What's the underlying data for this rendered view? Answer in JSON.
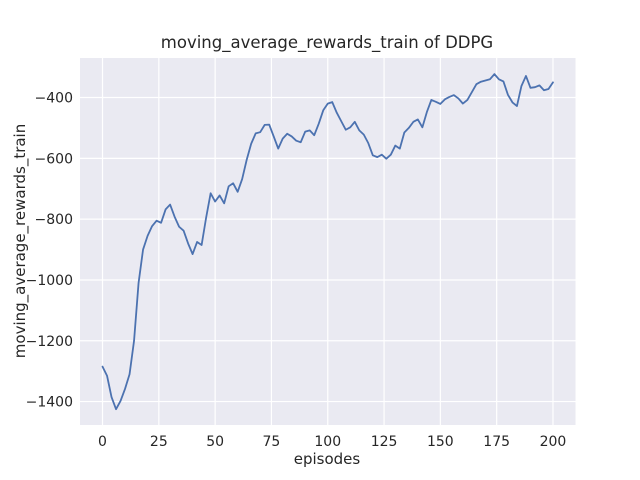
{
  "figure": {
    "background_color": "#FFFFFF",
    "axes_background_color": "#EAEAF2",
    "grid_color": "#FFFFFF",
    "text_color": "#262626",
    "line_color": "#4C72B0"
  },
  "chart_data": {
    "type": "line",
    "title": "moving_average_rewards_train of DDPG",
    "xlabel": "episodes",
    "ylabel": "moving_average_rewards_train",
    "grid": true,
    "legend_position": "none",
    "xlim": [
      -10,
      210
    ],
    "ylim": [
      -1477,
      -270
    ],
    "x_ticks": [
      0,
      25,
      50,
      75,
      100,
      125,
      150,
      175,
      200
    ],
    "x_tick_labels": [
      "0",
      "25",
      "50",
      "75",
      "100",
      "125",
      "150",
      "175",
      "200"
    ],
    "y_ticks": [
      -400,
      -600,
      -800,
      -1000,
      -1200,
      -1400
    ],
    "y_tick_labels": [
      "−400",
      "−600",
      "−800",
      "−1000",
      "−1200",
      "−1400"
    ],
    "series": [
      {
        "name": "moving_average_rewards_train",
        "color": "#4C72B0",
        "x": [
          0,
          2,
          4,
          6,
          8,
          10,
          12,
          14,
          16,
          18,
          20,
          22,
          24,
          26,
          28,
          30,
          32,
          34,
          36,
          38,
          40,
          42,
          44,
          46,
          48,
          50,
          52,
          54,
          56,
          58,
          60,
          62,
          64,
          66,
          68,
          70,
          72,
          74,
          76,
          78,
          80,
          82,
          84,
          86,
          88,
          90,
          92,
          94,
          96,
          98,
          100,
          102,
          104,
          106,
          108,
          110,
          112,
          114,
          116,
          118,
          120,
          122,
          124,
          126,
          128,
          130,
          132,
          134,
          136,
          138,
          140,
          142,
          144,
          146,
          148,
          150,
          152,
          154,
          156,
          158,
          160,
          162,
          164,
          166,
          168,
          170,
          172,
          174,
          176,
          178,
          180,
          182,
          184,
          186,
          188,
          190,
          192,
          194,
          196,
          198,
          200
        ],
        "y": [
          -1285,
          -1315,
          -1385,
          -1425,
          -1398,
          -1358,
          -1310,
          -1200,
          -1010,
          -900,
          -855,
          -823,
          -805,
          -812,
          -768,
          -752,
          -792,
          -825,
          -838,
          -880,
          -915,
          -875,
          -885,
          -795,
          -715,
          -742,
          -722,
          -748,
          -692,
          -682,
          -710,
          -668,
          -605,
          -552,
          -518,
          -514,
          -490,
          -489,
          -528,
          -568,
          -535,
          -519,
          -528,
          -542,
          -547,
          -512,
          -508,
          -524,
          -486,
          -442,
          -420,
          -415,
          -450,
          -478,
          -506,
          -498,
          -480,
          -508,
          -522,
          -550,
          -590,
          -596,
          -588,
          -601,
          -588,
          -558,
          -568,
          -515,
          -500,
          -480,
          -472,
          -498,
          -448,
          -408,
          -414,
          -421,
          -406,
          -398,
          -392,
          -403,
          -420,
          -408,
          -382,
          -356,
          -348,
          -344,
          -340,
          -323,
          -340,
          -347,
          -391,
          -416,
          -428,
          -362,
          -329,
          -368,
          -366,
          -360,
          -376,
          -372,
          -350
        ]
      }
    ]
  }
}
